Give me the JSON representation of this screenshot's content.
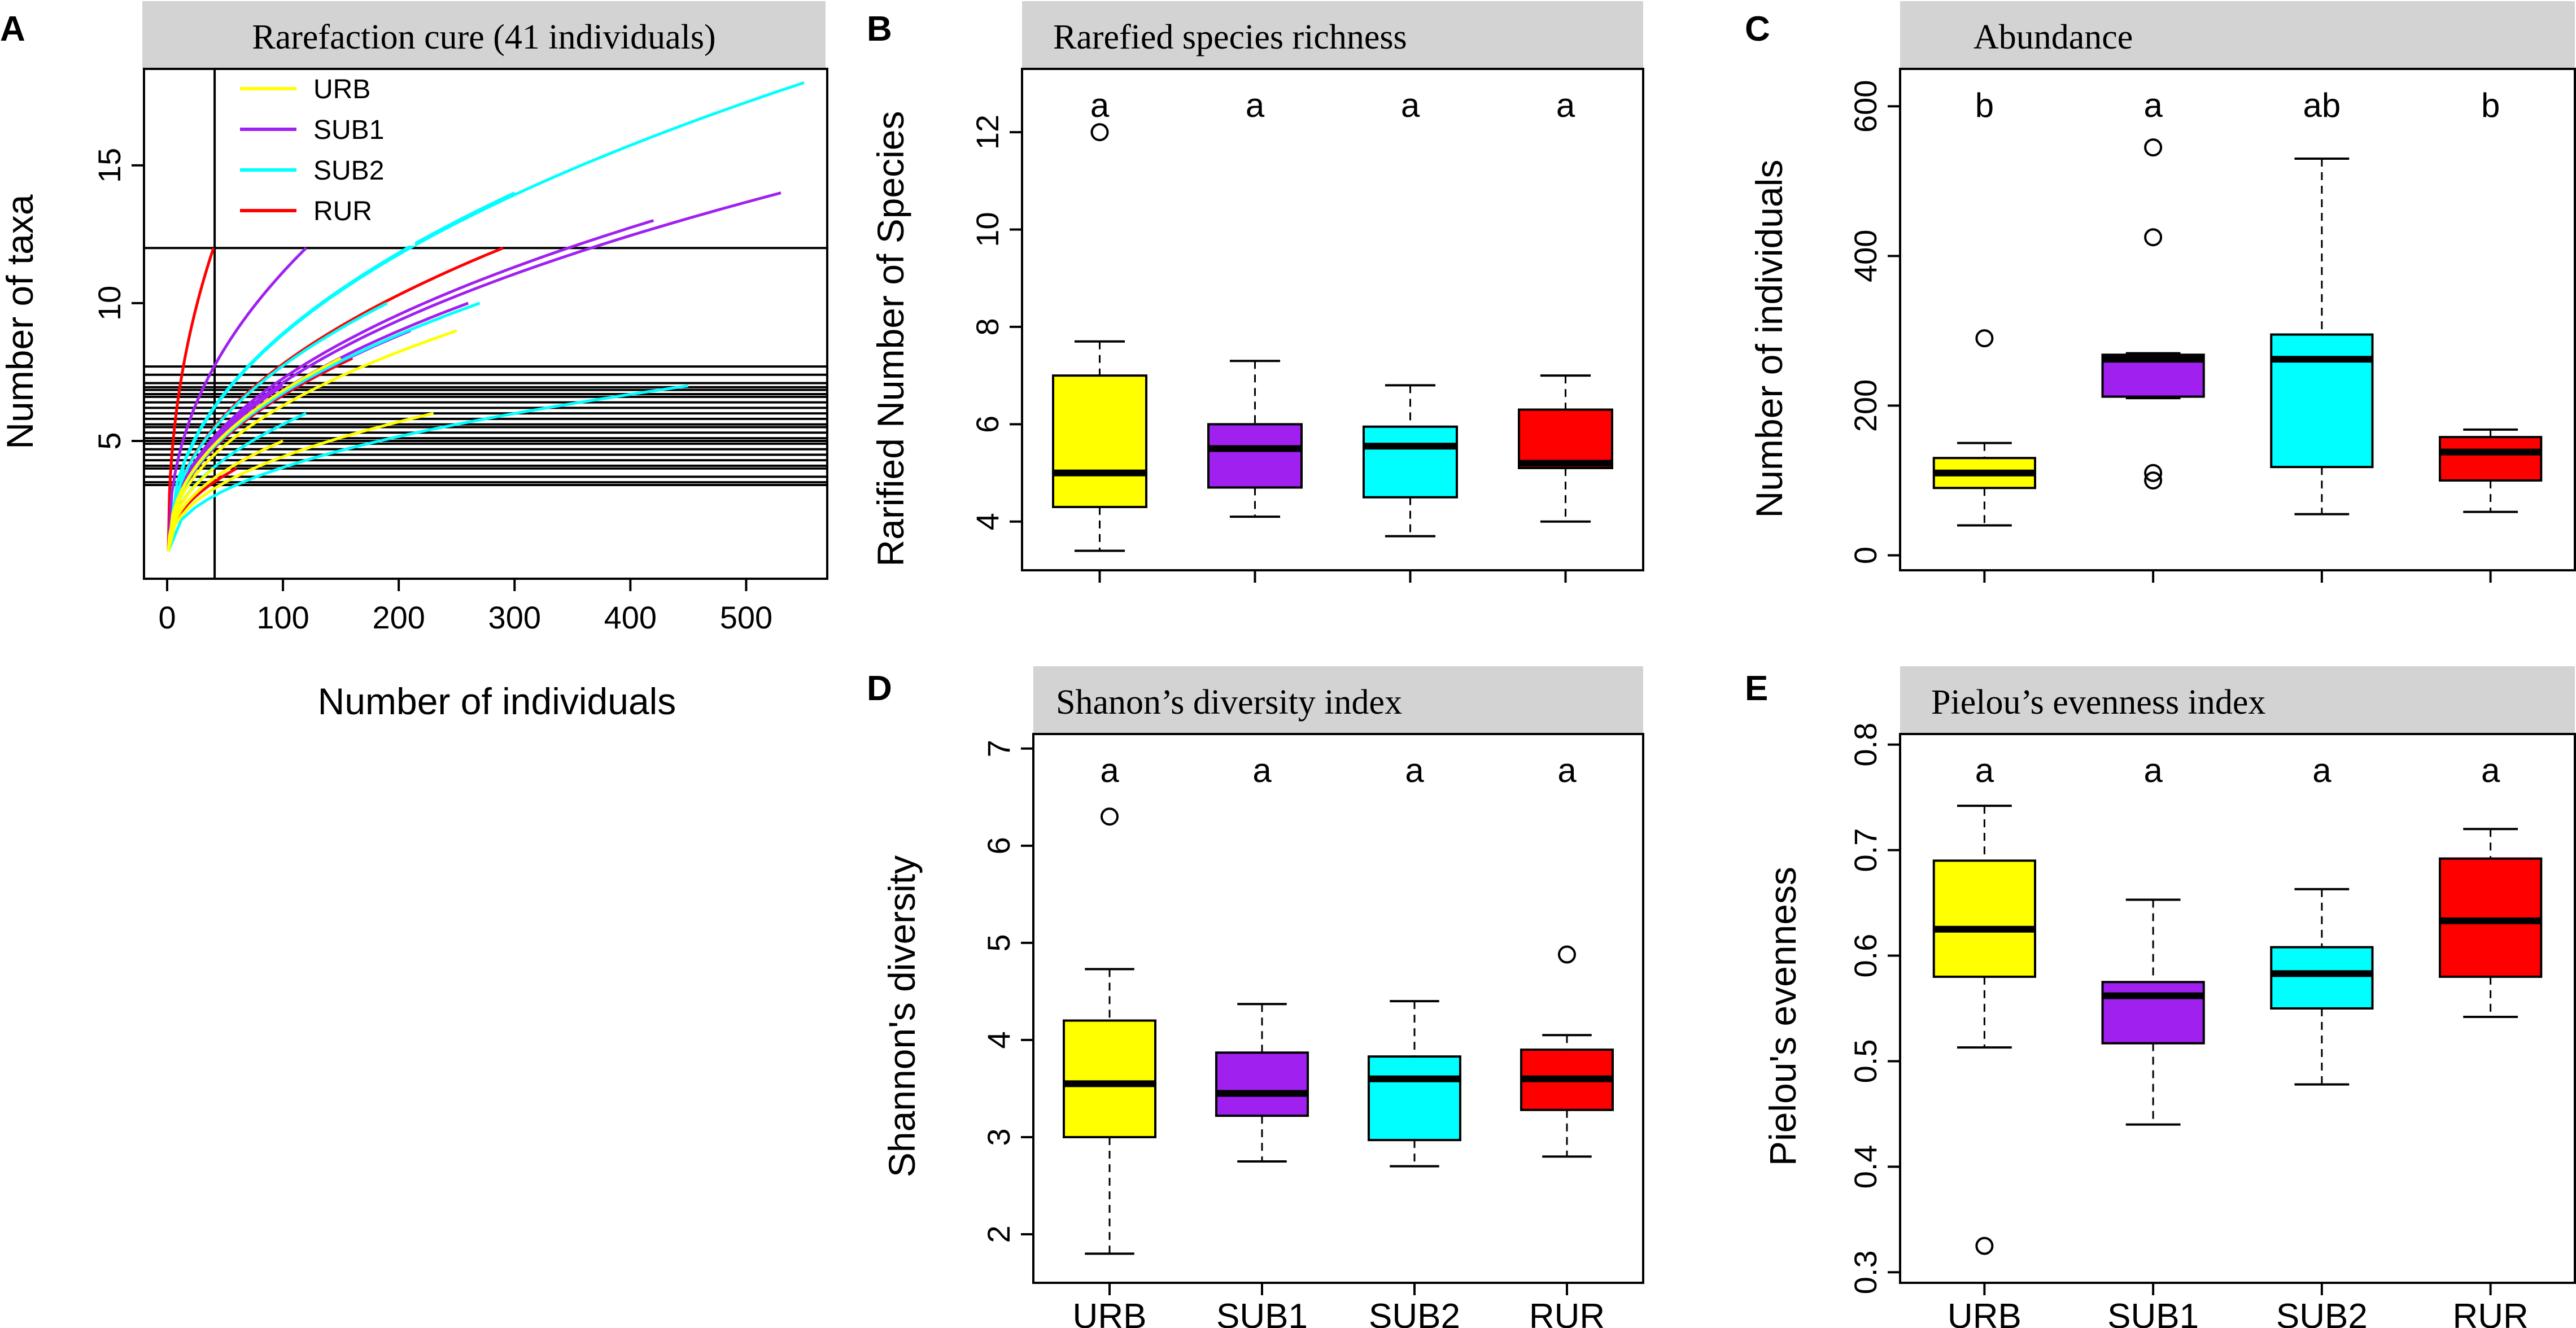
{
  "chart_data": [
    {
      "id": "A",
      "panel_label": "A",
      "type": "line",
      "title": "Rarefaction cure (41 individuals)",
      "xlabel": "Number of individuals",
      "ylabel": "Number of taxa",
      "xlim": [
        -20,
        570
      ],
      "ylim": [
        0,
        18.5
      ],
      "xticks": [
        0,
        100,
        200,
        300,
        400,
        500
      ],
      "yticks": [
        5,
        10,
        15
      ],
      "reference_vline": 41,
      "reference_hlines": [
        12,
        7.7,
        7.4,
        7.1,
        6.95,
        6.85,
        6.7,
        6.6,
        6.4,
        6.2,
        6.0,
        5.8,
        5.6,
        5.5,
        5.3,
        5.1,
        5.0,
        4.9,
        4.7,
        4.5,
        4.3,
        4.1,
        4.0,
        3.7,
        3.5,
        3.4
      ],
      "legend": [
        {
          "name": "URB",
          "color": "#ffff00"
        },
        {
          "name": "SUB1",
          "color": "#a020f0"
        },
        {
          "name": "SUB2",
          "color": "#00ffff"
        },
        {
          "name": "RUR",
          "color": "#ff0000"
        }
      ],
      "series": [
        {
          "group": "RUR",
          "n": 40,
          "s": 12
        },
        {
          "group": "RUR",
          "n": 290,
          "s": 12
        },
        {
          "group": "RUR",
          "n": 160,
          "s": 8
        },
        {
          "group": "RUR",
          "n": 100,
          "s": 5
        },
        {
          "group": "RUR",
          "n": 60,
          "s": 4
        },
        {
          "group": "SUB1",
          "n": 120,
          "s": 12
        },
        {
          "group": "SUB1",
          "n": 530,
          "s": 14
        },
        {
          "group": "SUB1",
          "n": 420,
          "s": 13
        },
        {
          "group": "SUB1",
          "n": 260,
          "s": 10
        },
        {
          "group": "SUB1",
          "n": 210,
          "s": 9
        },
        {
          "group": "SUB1",
          "n": 100,
          "s": 7
        },
        {
          "group": "SUB2",
          "n": 550,
          "s": 18
        },
        {
          "group": "SUB2",
          "n": 300,
          "s": 14
        },
        {
          "group": "SUB2",
          "n": 270,
          "s": 10
        },
        {
          "group": "SUB2",
          "n": 190,
          "s": 10
        },
        {
          "group": "SUB2",
          "n": 450,
          "s": 7
        },
        {
          "group": "SUB2",
          "n": 120,
          "s": 6
        },
        {
          "group": "URB",
          "n": 150,
          "s": 8
        },
        {
          "group": "URB",
          "n": 250,
          "s": 9
        },
        {
          "group": "URB",
          "n": 230,
          "s": 6
        },
        {
          "group": "URB",
          "n": 100,
          "s": 5
        },
        {
          "group": "URB",
          "n": 40,
          "s": 4
        }
      ]
    },
    {
      "id": "B",
      "panel_label": "B",
      "type": "box",
      "title": "Rarefied species richness",
      "ylabel": "Rarified Number of Species",
      "ylim": [
        3.0,
        13.3
      ],
      "yticks": [
        4,
        6,
        8,
        10,
        12
      ],
      "categories": [
        "URB",
        "SUB1",
        "SUB2",
        "RUR"
      ],
      "colors": [
        "#ffff00",
        "#a020f0",
        "#00ffff",
        "#ff0000"
      ],
      "show_category_labels": false,
      "boxes": [
        {
          "min": 3.4,
          "q1": 4.3,
          "median": 5.0,
          "q3": 7.0,
          "max": 7.7,
          "outliers": [
            12.0
          ]
        },
        {
          "min": 4.1,
          "q1": 4.7,
          "median": 5.5,
          "q3": 6.0,
          "max": 7.3,
          "outliers": []
        },
        {
          "min": 3.7,
          "q1": 4.5,
          "median": 5.55,
          "q3": 5.95,
          "max": 6.8,
          "outliers": []
        },
        {
          "min": 4.0,
          "q1": 5.1,
          "median": 5.2,
          "q3": 6.3,
          "max": 7.0,
          "outliers": []
        }
      ],
      "significance": [
        "a",
        "a",
        "a",
        "a"
      ]
    },
    {
      "id": "C",
      "panel_label": "C",
      "type": "box",
      "title": "Abundance",
      "ylabel": "Number of individuals",
      "ylim": [
        -20,
        650
      ],
      "yticks": [
        0,
        200,
        400,
        600
      ],
      "categories": [
        "URB",
        "SUB1",
        "SUB2",
        "RUR"
      ],
      "colors": [
        "#ffff00",
        "#a020f0",
        "#00ffff",
        "#ff0000"
      ],
      "show_category_labels": false,
      "boxes": [
        {
          "min": 40,
          "q1": 90,
          "median": 110,
          "q3": 130,
          "max": 150,
          "outliers": [
            290
          ]
        },
        {
          "min": 210,
          "q1": 212,
          "median": 262,
          "q3": 268,
          "max": 270,
          "outliers": [
            545,
            425,
            110,
            100
          ]
        },
        {
          "min": 55,
          "q1": 118,
          "median": 262,
          "q3": 295,
          "max": 530,
          "outliers": []
        },
        {
          "min": 58,
          "q1": 100,
          "median": 138,
          "q3": 158,
          "max": 168,
          "outliers": []
        }
      ],
      "significance": [
        "b",
        "a",
        "ab",
        "b"
      ]
    },
    {
      "id": "D",
      "panel_label": "D",
      "type": "box",
      "title": "Shanon’s diversity index",
      "ylabel": "Shannon's diversity",
      "ylim": [
        1.5,
        7.15
      ],
      "yticks": [
        2,
        3,
        4,
        5,
        6,
        7
      ],
      "categories": [
        "URB",
        "SUB1",
        "SUB2",
        "RUR"
      ],
      "colors": [
        "#ffff00",
        "#a020f0",
        "#00ffff",
        "#ff0000"
      ],
      "show_category_labels": true,
      "boxes": [
        {
          "min": 1.8,
          "q1": 3.0,
          "median": 3.55,
          "q3": 4.2,
          "max": 4.73,
          "outliers": [
            6.3
          ]
        },
        {
          "min": 2.75,
          "q1": 3.22,
          "median": 3.45,
          "q3": 3.87,
          "max": 4.37,
          "outliers": []
        },
        {
          "min": 2.7,
          "q1": 2.97,
          "median": 3.6,
          "q3": 3.83,
          "max": 4.4,
          "outliers": []
        },
        {
          "min": 2.8,
          "q1": 3.28,
          "median": 3.6,
          "q3": 3.9,
          "max": 4.05,
          "outliers": [
            4.88
          ]
        }
      ],
      "significance": [
        "a",
        "a",
        "a",
        "a"
      ]
    },
    {
      "id": "E",
      "panel_label": "E",
      "type": "box",
      "title": "Pielou’s evenness index",
      "ylabel": "Pielou's evenness",
      "ylim": [
        0.29,
        0.81
      ],
      "yticks": [
        0.3,
        0.4,
        0.5,
        0.6,
        0.7,
        0.8
      ],
      "categories": [
        "URB",
        "SUB1",
        "SUB2",
        "RUR"
      ],
      "colors": [
        "#ffff00",
        "#a020f0",
        "#00ffff",
        "#ff0000"
      ],
      "show_category_labels": true,
      "boxes": [
        {
          "min": 0.513,
          "q1": 0.58,
          "median": 0.625,
          "q3": 0.69,
          "max": 0.742,
          "outliers": [
            0.325
          ]
        },
        {
          "min": 0.44,
          "q1": 0.517,
          "median": 0.562,
          "q3": 0.575,
          "max": 0.653,
          "outliers": []
        },
        {
          "min": 0.478,
          "q1": 0.55,
          "median": 0.583,
          "q3": 0.608,
          "max": 0.663,
          "outliers": []
        },
        {
          "min": 0.542,
          "q1": 0.58,
          "median": 0.633,
          "q3": 0.692,
          "max": 0.72,
          "outliers": []
        }
      ],
      "significance": [
        "a",
        "a",
        "a",
        "a"
      ]
    }
  ]
}
